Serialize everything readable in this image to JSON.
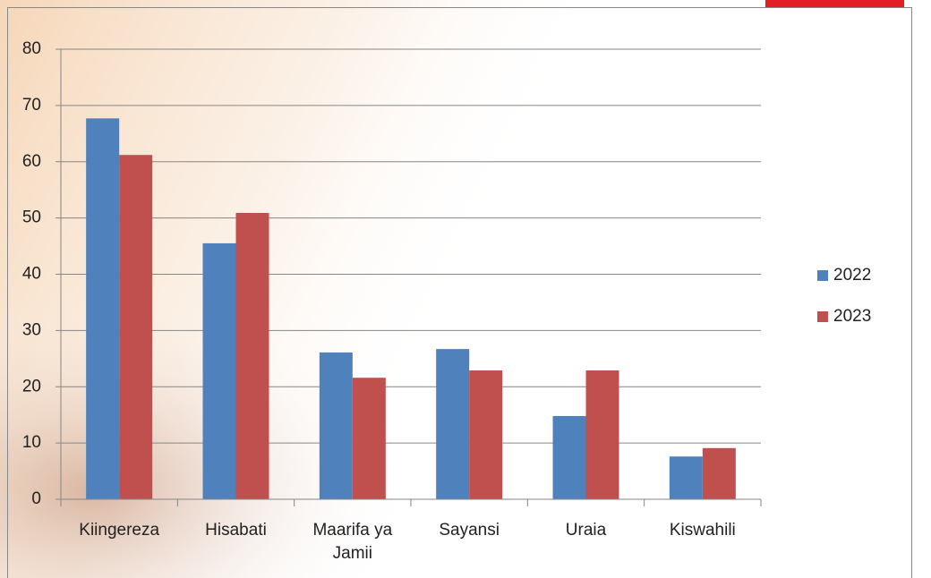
{
  "chart_data": {
    "type": "bar",
    "categories": [
      "Kiingereza",
      "Hisabati",
      "Maarifa ya Jamii",
      "Sayansi",
      "Uraia",
      "Kiswahili"
    ],
    "series": [
      {
        "name": "2022",
        "color": "#4f81bd",
        "values": [
          67.7,
          45.5,
          26.1,
          26.7,
          14.8,
          7.6
        ]
      },
      {
        "name": "2023",
        "color": "#c0504d",
        "values": [
          61.2,
          50.9,
          21.6,
          22.9,
          22.9,
          9.1
        ]
      }
    ],
    "ylim": [
      0,
      80
    ],
    "yticks": [
      0,
      10,
      20,
      30,
      40,
      50,
      60,
      70,
      80
    ],
    "grid": true,
    "legend": "right"
  }
}
